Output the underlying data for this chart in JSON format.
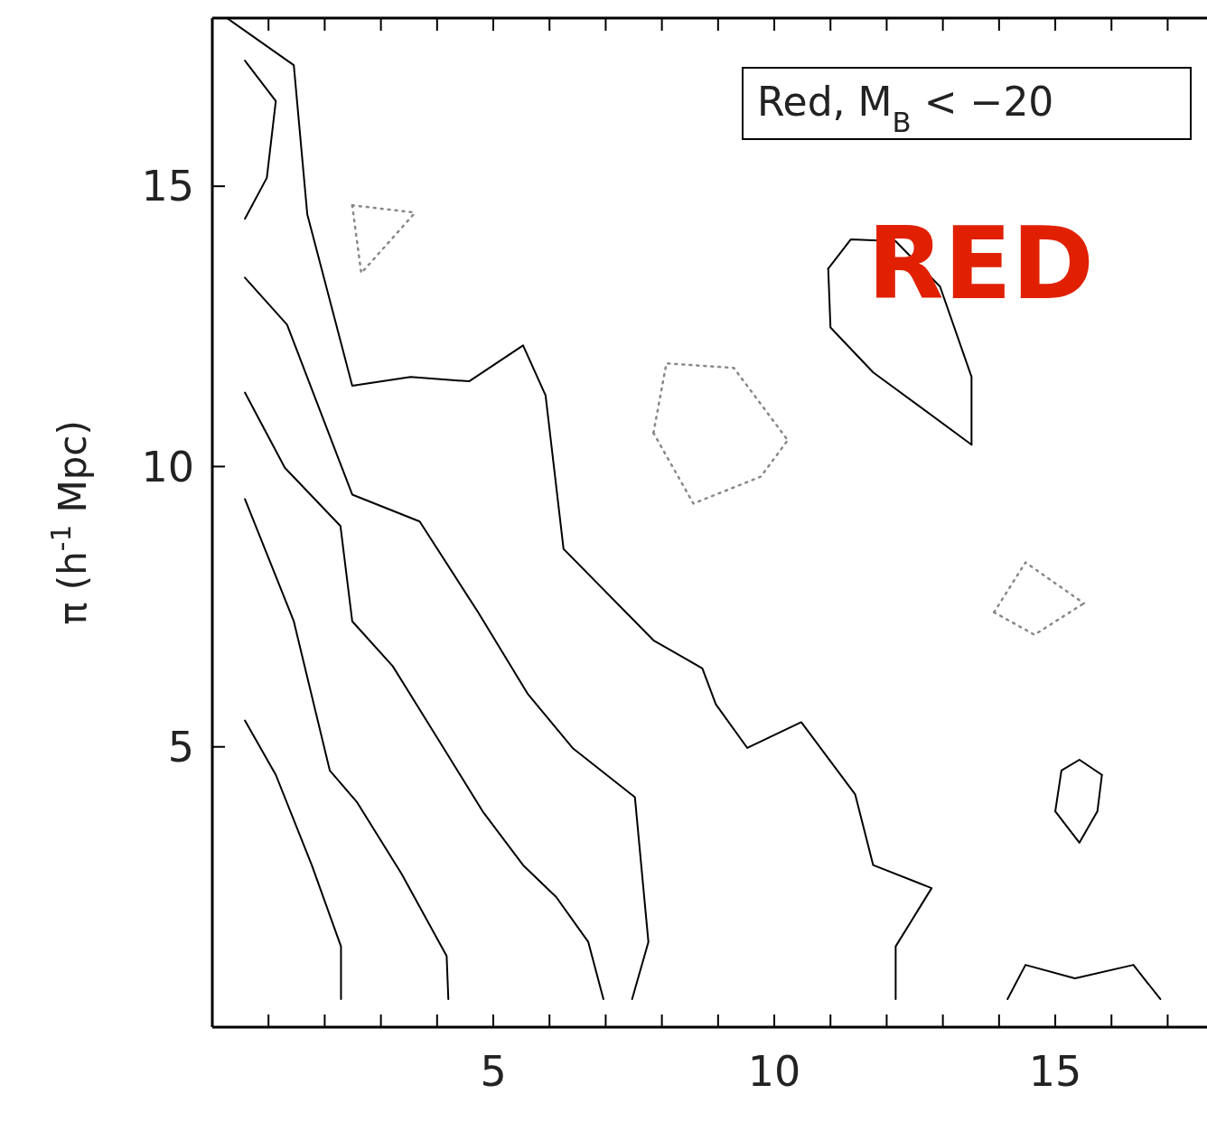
{
  "chart_data": {
    "type": "line",
    "ylabel": "π (h$^{-1}$ Mpc)",
    "xlim": [
      0,
      17.7
    ],
    "ylim": [
      0,
      18
    ],
    "xticks": [
      {
        "value": 1,
        "label": null
      },
      {
        "value": 2,
        "label": null
      },
      {
        "value": 3,
        "label": null
      },
      {
        "value": 4,
        "label": null
      },
      5,
      {
        "value": 6,
        "label": null
      },
      {
        "value": 7,
        "label": null
      },
      {
        "value": 8,
        "label": null
      },
      {
        "value": 9,
        "label": null
      },
      10,
      {
        "value": 11,
        "label": null
      },
      {
        "value": 12,
        "label": null
      },
      {
        "value": 13,
        "label": null
      },
      {
        "value": 14,
        "label": null
      },
      15,
      {
        "value": 16,
        "label": null
      },
      {
        "value": 17,
        "label": null
      }
    ],
    "yticks": [
      5,
      10,
      15
    ],
    "annotations": [
      "Red, M$_{B}$ < −20",
      "RED"
    ],
    "series": [
      {
        "color": "#000000",
        "line_style": "solid",
        "x": [
          0.58,
          1.13,
          1.77,
          2.29,
          2.29
        ],
        "values": [
          5.47,
          4.5,
          2.89,
          1.44,
          0.5
        ]
      },
      {
        "color": "#000000",
        "line_style": "solid",
        "x": [
          0.58,
          1.45,
          2.09,
          2.57,
          3.37,
          4.17,
          4.2
        ],
        "values": [
          9.42,
          7.24,
          4.58,
          4.02,
          2.73,
          1.27,
          0.5
        ]
      },
      {
        "color": "#000000",
        "line_style": "solid",
        "x": [
          0.58,
          1.29,
          2.28,
          2.49,
          3.21,
          4.01,
          4.81,
          5.53,
          6.12,
          6.69,
          6.96
        ],
        "values": [
          11.32,
          9.98,
          8.94,
          7.24,
          6.44,
          5.15,
          3.85,
          2.89,
          2.32,
          1.52,
          0.5
        ]
      },
      {
        "color": "#000000",
        "line_style": "solid",
        "x": [
          0.58,
          1.33,
          2.49,
          3.69,
          4.73,
          5.61,
          6.41,
          7.52,
          7.76,
          7.47
        ],
        "values": [
          13.37,
          12.53,
          9.5,
          9.02,
          7.4,
          5.95,
          4.98,
          4.1,
          1.52,
          0.5
        ]
      },
      {
        "color": "#000000",
        "line_style": "solid",
        "x": [
          0.26,
          1.45,
          1.69,
          2.49,
          3.53,
          4.57,
          5.53,
          5.93,
          6.25,
          7.85,
          8.72,
          8.96,
          9.52,
          10.48,
          11.44,
          11.76,
          12.8,
          12.16,
          12.16
        ],
        "values": [
          18.0,
          17.16,
          14.5,
          11.44,
          11.6,
          11.52,
          12.16,
          11.27,
          8.53,
          6.9,
          6.4,
          5.76,
          4.98,
          5.44,
          4.15,
          2.89,
          2.48,
          1.44,
          0.5
        ]
      },
      {
        "color": "#000000",
        "line_style": "solid",
        "x": [
          0.58,
          1.13,
          0.97,
          0.58
        ],
        "values": [
          17.24,
          16.52,
          15.15,
          14.42
        ]
      },
      {
        "color": "#000000",
        "line_style": "solid",
        "x": [
          10.96,
          11.36,
          12.16,
          12.95,
          13.51,
          13.51
        ],
        "values": [
          13.53,
          14.05,
          14.02,
          13.21,
          11.6,
          10.39
        ]
      },
      {
        "color": "#000000",
        "line_style": "solid",
        "x": [
          10.96,
          11.0,
          11.76,
          13.51
        ],
        "values": [
          13.53,
          12.48,
          11.68,
          10.39
        ]
      },
      {
        "color": "#000000",
        "line_style": "solid",
        "x": [
          15.0,
          15.11,
          15.43,
          15.83
        ],
        "values": [
          3.85,
          4.58,
          4.77,
          4.5
        ]
      },
      {
        "color": "#000000",
        "line_style": "solid",
        "x": [
          15.0,
          15.43,
          15.75,
          15.83
        ],
        "values": [
          3.85,
          3.29,
          3.85,
          4.5
        ]
      },
      {
        "color": "#000000",
        "line_style": "solid",
        "x": [
          14.15,
          14.47,
          15.35,
          16.39,
          16.87
        ],
        "values": [
          0.5,
          1.11,
          0.87,
          1.11,
          0.5
        ]
      },
      {
        "color": "#888888",
        "line_style": "dotted",
        "x": [
          7.85,
          8.08,
          9.28,
          10.24
        ],
        "values": [
          10.6,
          11.84,
          11.76,
          10.47
        ]
      },
      {
        "color": "#888888",
        "line_style": "dotted",
        "x": [
          7.85,
          8.56,
          9.76,
          10.24
        ],
        "values": [
          10.6,
          9.34,
          9.82,
          10.47
        ]
      },
      {
        "color": "#888888",
        "line_style": "dotted",
        "x": [
          2.49,
          3.61
        ],
        "values": [
          14.66,
          14.53
        ]
      },
      {
        "color": "#888888",
        "line_style": "dotted",
        "x": [
          2.49,
          2.65,
          3.61
        ],
        "values": [
          14.66,
          13.45,
          14.53
        ]
      },
      {
        "color": "#888888",
        "line_style": "dotted",
        "x": [
          13.91,
          14.47,
          15.51
        ],
        "values": [
          7.4,
          8.29,
          7.56
        ]
      },
      {
        "color": "#888888",
        "line_style": "dotted",
        "x": [
          13.91,
          14.63,
          15.51
        ],
        "values": [
          7.4,
          7.0,
          7.56
        ]
      }
    ]
  }
}
